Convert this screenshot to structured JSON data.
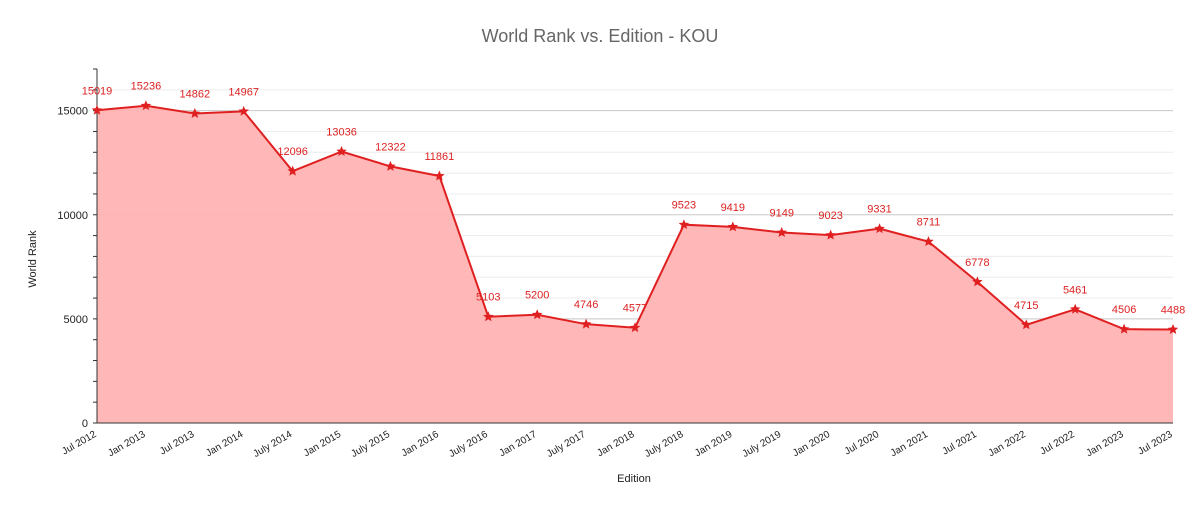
{
  "chart_data": {
    "type": "area",
    "title": "World Rank vs. Edition - KOU",
    "xlabel": "Edition",
    "ylabel": "World Rank",
    "ylim": [
      0,
      17000
    ],
    "yticks": [
      0,
      5000,
      10000,
      15000
    ],
    "grid": true,
    "legend": "none",
    "categories": [
      "Jul 2012",
      "Jan 2013",
      "Jul 2013",
      "Jan 2014",
      "July 2014",
      "Jan 2015",
      "July 2015",
      "Jan 2016",
      "July 2016",
      "Jan 2017",
      "July 2017",
      "Jan 2018",
      "July 2018",
      "Jan 2019",
      "July 2019",
      "Jan 2020",
      "Jul 2020",
      "Jan 2021",
      "Jul 2021",
      "Jan 2022",
      "Jul 2022",
      "Jan 2023",
      "Jul 2023"
    ],
    "values": [
      15019,
      15236,
      14862,
      14967,
      12096,
      13036,
      12322,
      11861,
      5103,
      5200,
      4746,
      4577,
      9523,
      9419,
      9149,
      9023,
      9331,
      8711,
      6778,
      4715,
      5461,
      4506,
      4488
    ],
    "colors": {
      "line": "#e02020",
      "fill": "#ffb3b3",
      "labels": "#dd2222",
      "grid": "#cccccc",
      "title": "#666666"
    }
  }
}
